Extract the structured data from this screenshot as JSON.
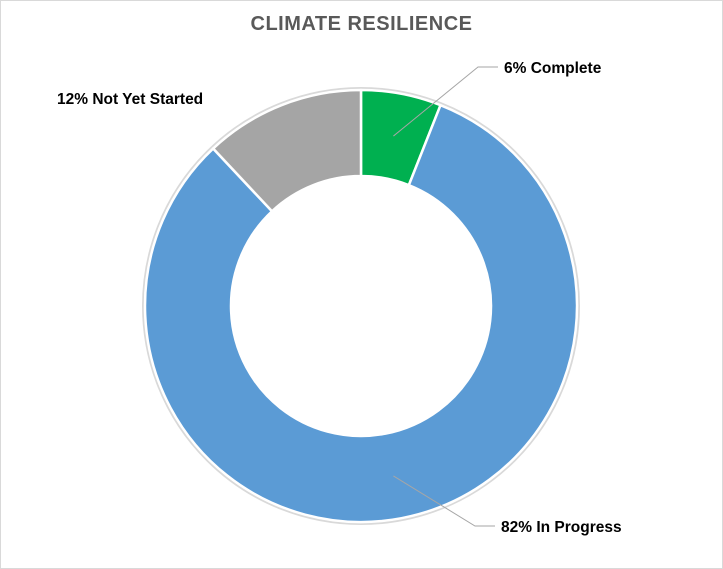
{
  "chart_data": {
    "type": "pie",
    "style": "donut",
    "title": "CLIMATE RESILIENCE",
    "slices": [
      {
        "name": "Complete",
        "value": 6,
        "label": "6% Complete",
        "color": "#00b050"
      },
      {
        "name": "In Progress",
        "value": 82,
        "label": "82% In Progress",
        "color": "#5b9bd5"
      },
      {
        "name": "Not Yet Started",
        "value": 12,
        "label": "12% Not Yet Started",
        "color": "#a5a5a5"
      }
    ],
    "label_position": "outside with leader lines",
    "legend": "none"
  }
}
